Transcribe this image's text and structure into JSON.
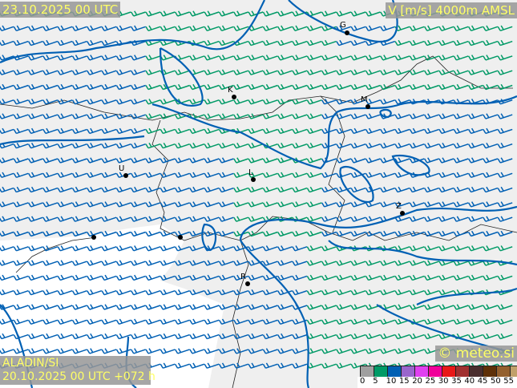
{
  "header": {
    "valid_time": "23.10.2025 00 UTC",
    "field": "V [m/s] 4000m AMSL"
  },
  "footer": {
    "model": "ALADIN/SI",
    "run": "20.10.2025 00 UTC +072 h",
    "copyright": "© meteo.si"
  },
  "legend": {
    "colors": [
      "#a0a0a0",
      "#009a66",
      "#0060b4",
      "#9966cc",
      "#e040f0",
      "#f0009a",
      "#e81818",
      "#a03030",
      "#4a2e2e",
      "#5e3008",
      "#94602e",
      "#c0a06a"
    ],
    "ticks": [
      "0",
      "5",
      "10",
      "15",
      "20",
      "25",
      "30",
      "35",
      "40",
      "45",
      "50",
      "55"
    ]
  },
  "cities": [
    {
      "label": "G"
    },
    {
      "label": "K"
    },
    {
      "label": "M"
    },
    {
      "label": "U"
    },
    {
      "label": "L"
    },
    {
      "label": "Z"
    },
    {
      "label": "R"
    }
  ],
  "barb_colors": {
    "low": "#009a66",
    "mid": "#0060b4"
  },
  "isotach_color": "#0060b4"
}
